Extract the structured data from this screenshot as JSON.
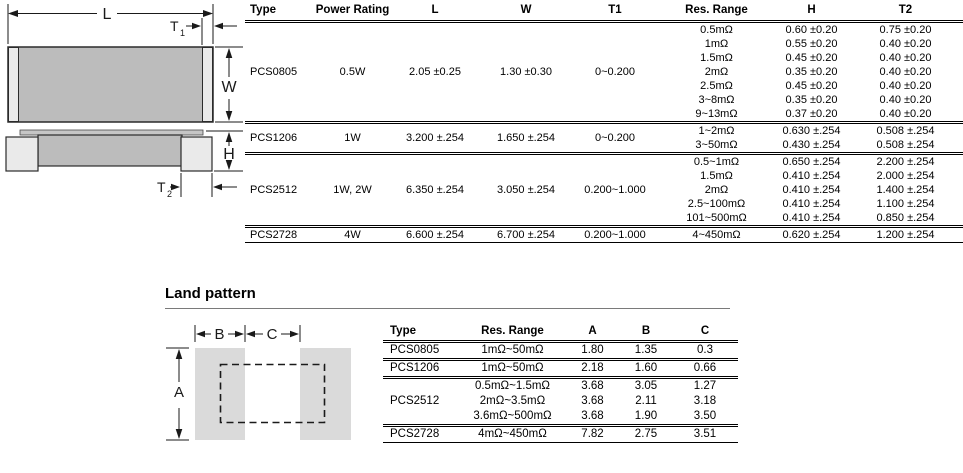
{
  "colors": {
    "chip_body": "#bcbcbc",
    "chip_terminal": "#eaeaea",
    "chip_strip": "#c6c6c6",
    "land_pad": "#dadada",
    "rule": "#000000"
  },
  "chip_diagram": {
    "labels": {
      "l": "L",
      "w": "W",
      "h": "H",
      "t": "T",
      "t1_sub": "1",
      "t2_sub": "2"
    }
  },
  "dimensions_table": {
    "headers": [
      "Type",
      "Power Rating",
      "L",
      "W",
      "T1",
      "Res. Range",
      "H",
      "T2"
    ],
    "groups": [
      {
        "type": "PCS0805",
        "power": "0.5W",
        "l": "2.05 ±0.25",
        "w": "1.30 ±0.30",
        "t1": "0~0.200",
        "sub": [
          {
            "res": "0.5mΩ",
            "h": "0.60 ±0.20",
            "t2": "0.75 ±0.20"
          },
          {
            "res": "1mΩ",
            "h": "0.55 ±0.20",
            "t2": "0.40 ±0.20"
          },
          {
            "res": "1.5mΩ",
            "h": "0.45 ±0.20",
            "t2": "0.40 ±0.20"
          },
          {
            "res": "2mΩ",
            "h": "0.35 ±0.20",
            "t2": "0.40 ±0.20"
          },
          {
            "res": "2.5mΩ",
            "h": "0.45 ±0.20",
            "t2": "0.40 ±0.20"
          },
          {
            "res": "3~8mΩ",
            "h": "0.35 ±0.20",
            "t2": "0.40 ±0.20"
          },
          {
            "res": "9~13mΩ",
            "h": "0.37 ±0.20",
            "t2": "0.40 ±0.20"
          }
        ]
      },
      {
        "type": "PCS1206",
        "power": "1W",
        "l": "3.200 ±.254",
        "w": "1.650 ±.254",
        "t1": "0~0.200",
        "sub": [
          {
            "res": "1~2mΩ",
            "h": "0.630 ±.254",
            "t2": "0.508 ±.254"
          },
          {
            "res": "3~50mΩ",
            "h": "0.430 ±.254",
            "t2": "0.508 ±.254"
          }
        ]
      },
      {
        "type": "PCS2512",
        "power": "1W, 2W",
        "l": "6.350 ±.254",
        "w": "3.050 ±.254",
        "t1": "0.200~1.000",
        "sub": [
          {
            "res": "0.5~1mΩ",
            "h": "0.650 ±.254",
            "t2": "2.200 ±.254"
          },
          {
            "res": "1.5mΩ",
            "h": "0.410 ±.254",
            "t2": "2.000 ±.254"
          },
          {
            "res": "2mΩ",
            "h": "0.410 ±.254",
            "t2": "1.400 ±.254"
          },
          {
            "res": "2.5~100mΩ",
            "h": "0.410 ±.254",
            "t2": "1.100 ±.254"
          },
          {
            "res": "101~500mΩ",
            "h": "0.410 ±.254",
            "t2": "0.850 ±.254"
          }
        ]
      },
      {
        "type": "PCS2728",
        "power": "4W",
        "l": "6.600 ±.254",
        "w": "6.700 ±.254",
        "t1": "0.200~1.000",
        "sub": [
          {
            "res": "4~450mΩ",
            "h": "0.620 ±.254",
            "t2": "1.200 ±.254"
          }
        ]
      }
    ]
  },
  "land_pattern": {
    "heading": "Land pattern",
    "diagram_labels": {
      "a": "A",
      "b": "B",
      "c": "C"
    },
    "table": {
      "headers": [
        "Type",
        "Res. Range",
        "A",
        "B",
        "C"
      ],
      "groups": [
        {
          "type": "PCS0805",
          "sub": [
            {
              "res": "1mΩ~50mΩ",
              "a": "1.80",
              "b": "1.35",
              "c": "0.3"
            }
          ]
        },
        {
          "type": "PCS1206",
          "sub": [
            {
              "res": "1mΩ~50mΩ",
              "a": "2.18",
              "b": "1.60",
              "c": "0.66"
            }
          ]
        },
        {
          "type": "PCS2512",
          "sub": [
            {
              "res": "0.5mΩ~1.5mΩ",
              "a": "3.68",
              "b": "3.05",
              "c": "1.27"
            },
            {
              "res": "2mΩ~3.5mΩ",
              "a": "3.68",
              "b": "2.11",
              "c": "3.18"
            },
            {
              "res": "3.6mΩ~500mΩ",
              "a": "3.68",
              "b": "1.90",
              "c": "3.50"
            }
          ]
        },
        {
          "type": "PCS2728",
          "sub": [
            {
              "res": "4mΩ~450mΩ",
              "a": "7.82",
              "b": "2.75",
              "c": "3.51"
            }
          ]
        }
      ]
    }
  }
}
